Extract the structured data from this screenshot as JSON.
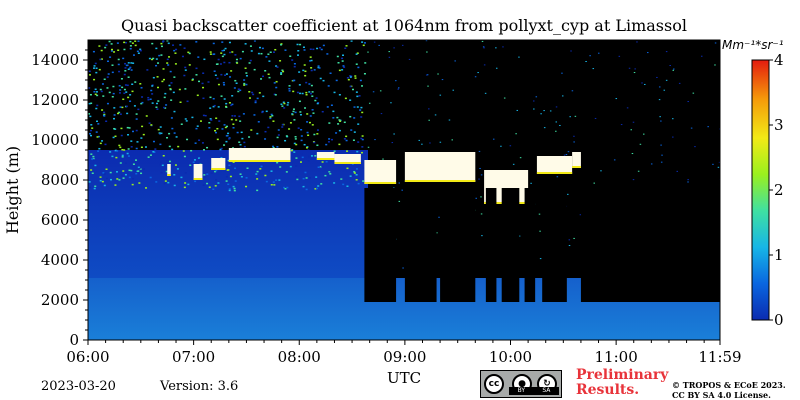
{
  "chart_data": {
    "type": "heatmap",
    "title": "Quasi backscatter coefficient at 1064nm from pollyxt_cyp at Limassol",
    "xlabel": "UTC",
    "ylabel": "Height (m)",
    "x_range": [
      "06:00",
      "11:59"
    ],
    "x_ticks": [
      "06:00",
      "07:00",
      "08:00",
      "09:00",
      "10:00",
      "11:00",
      "11:59"
    ],
    "y_range": [
      0,
      15000
    ],
    "y_ticks": [
      0,
      2000,
      4000,
      6000,
      8000,
      10000,
      12000,
      14000
    ],
    "colorbar": {
      "label": "Mm^{-1}*sr^{-1}",
      "range": [
        0,
        4
      ],
      "ticks": [
        0,
        1,
        2,
        3,
        4
      ],
      "colors": [
        "#0b2bb0",
        "#0a66e0",
        "#17b6e6",
        "#3fe0a2",
        "#9af01e",
        "#f2ea16",
        "#f59a0a",
        "#e41b0e"
      ]
    },
    "cloud_layer": {
      "description_value_range": [
        3,
        4
      ],
      "segments": [
        {
          "start": "06:45",
          "end": "06:47",
          "base": 8200,
          "top": 8800
        },
        {
          "start": "07:00",
          "end": "07:05",
          "base": 8000,
          "top": 8800
        },
        {
          "start": "07:10",
          "end": "07:18",
          "base": 8500,
          "top": 9100
        },
        {
          "start": "07:20",
          "end": "07:55",
          "base": 8900,
          "top": 9600
        },
        {
          "start": "08:10",
          "end": "08:20",
          "base": 9000,
          "top": 9400
        },
        {
          "start": "08:20",
          "end": "08:35",
          "base": 8800,
          "top": 9300
        },
        {
          "start": "08:37",
          "end": "08:55",
          "base": 7800,
          "top": 9000
        },
        {
          "start": "09:00",
          "end": "09:40",
          "base": 7900,
          "top": 9400
        },
        {
          "start": "09:45",
          "end": "10:10",
          "base": 6800,
          "top": 8500
        },
        {
          "start": "10:15",
          "end": "10:35",
          "base": 8300,
          "top": 9200
        },
        {
          "start": "10:35",
          "end": "10:40",
          "base": 8600,
          "top": 9400
        }
      ]
    },
    "low_level_signal_top": 1900,
    "signal_blocked_after": "08:37"
  },
  "footer": {
    "date": "2023-03-20",
    "version": "Version: 3.6",
    "license_badge": {
      "parts": [
        "cc-icon",
        "by-icon",
        "sa-icon"
      ],
      "labels": [
        "BY",
        "SA"
      ]
    },
    "preliminary": [
      "Preliminary",
      "Results."
    ],
    "copyright": [
      "© TROPOS & ECoE 2023.",
      "CC BY SA 4.0 License."
    ]
  }
}
